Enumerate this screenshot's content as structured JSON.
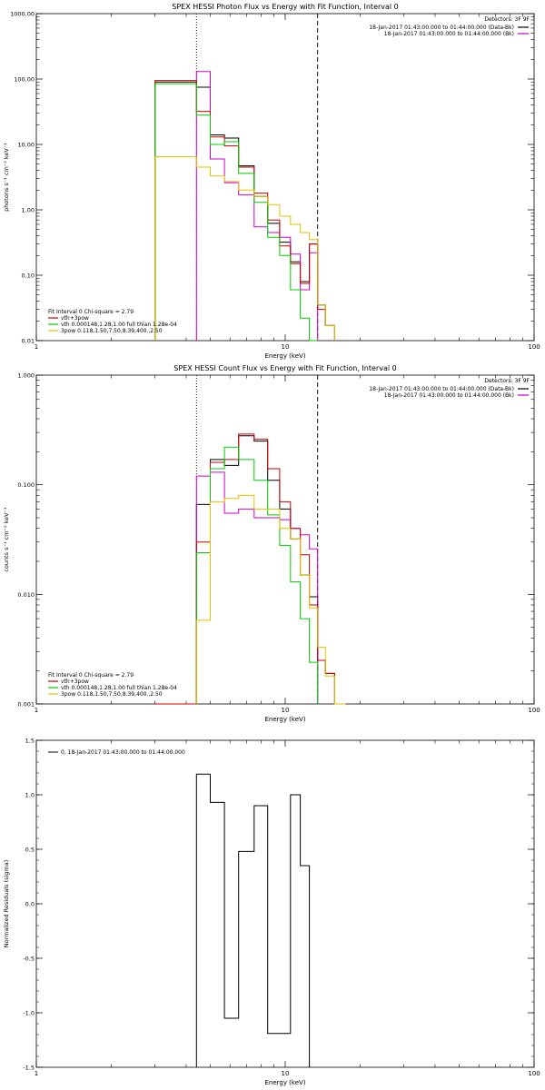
{
  "chart_data": [
    {
      "type": "line",
      "title": "SPEX HESSI Photon Flux vs Energy with Fit Function, Interval 0",
      "xlabel": "Energy (keV)",
      "ylabel": "photons s⁻¹ cm⁻² keV⁻¹",
      "xscale": "log",
      "yscale": "log",
      "xlim": [
        1,
        100
      ],
      "ylim": [
        0.01,
        1000
      ],
      "xticks": [
        {
          "v": 1,
          "label": "1"
        },
        {
          "v": 10,
          "label": "10"
        },
        {
          "v": 100,
          "label": "100"
        }
      ],
      "yticks": [
        {
          "v": 0.01,
          "label": "0.01"
        },
        {
          "v": 0.1,
          "label": "0.10"
        },
        {
          "v": 1,
          "label": "1.00"
        },
        {
          "v": 10,
          "label": "10.00"
        },
        {
          "v": 100,
          "label": "100.00"
        },
        {
          "v": 1000,
          "label": "1000.00"
        }
      ],
      "vlines": [
        {
          "x": 4.4,
          "style": "dotted"
        },
        {
          "x": 13.5,
          "style": "dashed"
        }
      ],
      "legend_top_right": {
        "header": "Detectors: 3F 9F",
        "entries": [
          {
            "text": "18-Jan-2017 01:43:00.000 to 01:44:00.000 (Data-Bk)",
            "color": "#000000"
          },
          {
            "text": "18-Jan-2017 01:43:00.000 to 01:44:00.000 (Bk)",
            "color": "#cc00cc"
          }
        ]
      },
      "legend_bottom_left": {
        "header": "Fit Interval 0   Chi-square = 2.79",
        "entries": [
          {
            "text": "vth+3pow",
            "color": "#cc0000"
          },
          {
            "text": "vth 0.000148,1.28,1.00  full thian 1.28e-04",
            "color": "#00cc00"
          },
          {
            "text": "3pow 0.118,1.50,7.50,8.39,400.,2.50",
            "color": "#e6c000"
          }
        ]
      },
      "edges": [
        3.0,
        4.4,
        5.0,
        5.7,
        6.5,
        7.5,
        8.5,
        9.5,
        10.5,
        11.5,
        12.5,
        13.5,
        14.5,
        15.8,
        17.5
      ],
      "series": [
        {
          "name": "Data-Bk",
          "color": "#000000",
          "values": [
            90,
            75,
            14,
            12.5,
            4.7,
            1.6,
            0.62,
            0.32,
            0.16,
            0.08,
            0.3,
            0.035,
            0.017,
            null
          ]
        },
        {
          "name": "Bk",
          "color": "#cc00cc",
          "values": [
            null,
            130,
            6,
            2.6,
            1.7,
            0.55,
            0.45,
            0.38,
            0.21,
            0.06,
            0.22,
            null,
            null,
            null
          ]
        },
        {
          "name": "vth+3pow",
          "color": "#cc0000",
          "values": [
            95,
            32,
            13,
            9.5,
            4.5,
            1.8,
            0.7,
            0.28,
            0.15,
            0.075,
            0.3,
            0.03,
            0.017,
            null
          ]
        },
        {
          "name": "vth",
          "color": "#00cc00",
          "values": [
            85,
            28,
            10,
            11,
            3.6,
            1.3,
            0.38,
            0.2,
            0.06,
            0.022,
            0.01,
            null,
            null,
            null
          ]
        },
        {
          "name": "3pow",
          "color": "#e6c000",
          "values": [
            6.5,
            4.5,
            3.3,
            2.7,
            2.0,
            1.6,
            1.2,
            0.8,
            0.6,
            0.45,
            0.35,
            0.035,
            0.017,
            null
          ]
        }
      ]
    },
    {
      "type": "line",
      "title": "SPEX HESSI Count Flux vs Energy with Fit Function, Interval 0",
      "xlabel": "Energy (keV)",
      "ylabel": "counts s⁻¹ cm⁻² keV⁻¹",
      "xscale": "log",
      "yscale": "log",
      "xlim": [
        1,
        100
      ],
      "ylim": [
        0.001,
        1
      ],
      "xticks": [
        {
          "v": 1,
          "label": "1"
        },
        {
          "v": 10,
          "label": "10"
        },
        {
          "v": 100,
          "label": "100"
        }
      ],
      "yticks": [
        {
          "v": 0.001,
          "label": "0.001"
        },
        {
          "v": 0.01,
          "label": "0.010"
        },
        {
          "v": 0.1,
          "label": "0.100"
        },
        {
          "v": 1,
          "label": "1.000"
        }
      ],
      "vlines": [
        {
          "x": 4.4,
          "style": "dotted"
        },
        {
          "x": 13.5,
          "style": "dashed"
        }
      ],
      "legend_top_right": {
        "header": "Detectors: 3F 9F",
        "entries": [
          {
            "text": "18-Jan-2017 01:43:00.000 to 01:44:00.000 (Data-Bk)",
            "color": "#000000"
          },
          {
            "text": "18-Jan-2017 01:43:00.000 to 01:44:00.000 (Bk)",
            "color": "#cc00cc"
          }
        ]
      },
      "legend_bottom_left": {
        "header": "Fit Interval 0   Chi-square = 2.79",
        "entries": [
          {
            "text": "vth+3pow",
            "color": "#cc0000"
          },
          {
            "text": "vth 0.000148,1.28,1.00  full thian 1.28e-04",
            "color": "#00cc00"
          },
          {
            "text": "3pow 0.118,1.50,7.50,8.39,400.,2.50",
            "color": "#e6c000"
          }
        ]
      },
      "edges": [
        3.0,
        4.4,
        5.0,
        5.7,
        6.5,
        7.5,
        8.5,
        9.5,
        10.5,
        11.5,
        12.5,
        13.5,
        14.5,
        15.8,
        17.5
      ],
      "series": [
        {
          "name": "Data-Bk",
          "color": "#000000",
          "values": [
            0.001,
            0.066,
            0.17,
            0.15,
            0.28,
            0.25,
            0.11,
            0.06,
            0.032,
            0.015,
            0.0095,
            0.0025,
            0.0019,
            0.001
          ]
        },
        {
          "name": "Bk",
          "color": "#cc00cc",
          "values": [
            null,
            0.12,
            0.13,
            0.055,
            0.06,
            0.05,
            0.05,
            0.048,
            0.04,
            0.035,
            0.026,
            null,
            null,
            null
          ]
        },
        {
          "name": "vth+3pow",
          "color": "#cc0000",
          "values": [
            0.001,
            0.03,
            0.16,
            0.17,
            0.29,
            0.26,
            0.14,
            0.07,
            0.04,
            0.023,
            0.008,
            0.0025,
            0.0019,
            0.001
          ]
        },
        {
          "name": "vth",
          "color": "#00cc00",
          "values": [
            null,
            0.024,
            0.14,
            0.22,
            0.17,
            0.11,
            0.053,
            0.028,
            0.013,
            0.006,
            0.0024,
            null,
            null,
            null
          ]
        },
        {
          "name": "3pow",
          "color": "#e6c000",
          "values": [
            null,
            0.0058,
            0.07,
            0.075,
            0.08,
            0.06,
            0.06,
            0.04,
            0.032,
            0.015,
            0.0075,
            0.0033,
            0.0018,
            0.001
          ]
        }
      ]
    },
    {
      "type": "line",
      "title": "",
      "xlabel": "Energy (keV)",
      "ylabel": "Normalized Residuals (sigma)",
      "xscale": "log",
      "yscale": "linear",
      "xlim": [
        1,
        100
      ],
      "ylim": [
        -1.5,
        1.5
      ],
      "xticks": [
        {
          "v": 1,
          "label": "1"
        },
        {
          "v": 10,
          "label": "10"
        },
        {
          "v": 100,
          "label": "100"
        }
      ],
      "yticks": [
        {
          "v": -1.5,
          "label": "-1.5"
        },
        {
          "v": -1.0,
          "label": "-1.0"
        },
        {
          "v": -0.5,
          "label": "-0.5"
        },
        {
          "v": 0.0,
          "label": "0.0"
        },
        {
          "v": 0.5,
          "label": "0.5"
        },
        {
          "v": 1.0,
          "label": "1.0"
        },
        {
          "v": 1.5,
          "label": "1.5"
        }
      ],
      "vlines": [],
      "legend_top_left": {
        "entries": [
          {
            "text": "0, 18-Jan-2017 01:43:00.000 to 01:44:00.000",
            "color": "#000000"
          }
        ]
      },
      "edges": [
        4.4,
        5.0,
        5.7,
        6.5,
        7.5,
        8.5,
        9.5,
        10.5,
        11.5,
        12.5,
        13.5
      ],
      "series": [
        {
          "name": "0, 18-Jan-2017 01:43:00.000 to 01:44:00.000",
          "color": "#000000",
          "values": [
            1.19,
            0.93,
            -1.05,
            0.48,
            0.9,
            -1.19,
            -1.19,
            1.0,
            0.35,
            null
          ],
          "start_from_bottom": true
        }
      ]
    }
  ]
}
